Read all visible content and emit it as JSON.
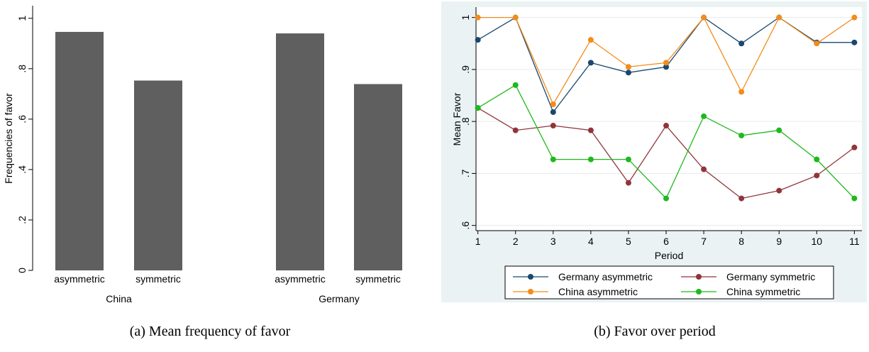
{
  "chart_data": [
    {
      "type": "bar",
      "caption": "(a) Mean frequency of favor",
      "ylabel": "Frequencies of favor",
      "ylim": [
        0,
        1.05
      ],
      "yticks": [
        0,
        0.2,
        0.4,
        0.6,
        0.8,
        1
      ],
      "ytick_labels": [
        "0",
        ".2",
        ".4",
        ".6",
        ".8",
        "1"
      ],
      "groups": [
        {
          "name": "China",
          "categories": [
            "asymmetric",
            "symmetric"
          ],
          "values": [
            0.946,
            0.753
          ]
        },
        {
          "name": "Germany",
          "categories": [
            "asymmetric",
            "symmetric"
          ],
          "values": [
            0.94,
            0.739
          ]
        }
      ],
      "bar_color": "#5f5f5f",
      "grid": false
    },
    {
      "type": "line",
      "caption": "(b) Favor over period",
      "xlabel": "Period",
      "ylabel": "Mean Favor",
      "x": [
        1,
        2,
        3,
        4,
        5,
        6,
        7,
        8,
        9,
        10,
        11
      ],
      "xlim": [
        0.95,
        11.2
      ],
      "ylim": [
        0.59,
        1.02
      ],
      "yticks": [
        0.6,
        0.7,
        0.8,
        0.9,
        1
      ],
      "ytick_labels": [
        ".6",
        ".7",
        ".8",
        ".9",
        "1"
      ],
      "grid": true,
      "legend_position": "bottom",
      "background": "#eaf2f3",
      "series": [
        {
          "name": "Germany asymmetric",
          "color": "#1a476f",
          "values": [
            0.957,
            1.0,
            0.818,
            0.913,
            0.894,
            0.905,
            1.0,
            0.95,
            1.0,
            0.952,
            0.952
          ]
        },
        {
          "name": "Germany symmetric",
          "color": "#90353b",
          "values": [
            0.826,
            0.783,
            0.792,
            0.783,
            0.682,
            0.792,
            0.708,
            0.652,
            0.667,
            0.696,
            0.75
          ]
        },
        {
          "name": "China asymmetric",
          "color": "#f28c1a",
          "values": [
            1.0,
            1.0,
            0.833,
            0.957,
            0.905,
            0.913,
            1.0,
            0.857,
            1.0,
            0.95,
            1.0
          ]
        },
        {
          "name": "China symmetric",
          "color": "#1db91d",
          "values": [
            0.826,
            0.87,
            0.727,
            0.727,
            0.727,
            0.652,
            0.81,
            0.773,
            0.783,
            0.727,
            0.652
          ]
        }
      ]
    }
  ]
}
